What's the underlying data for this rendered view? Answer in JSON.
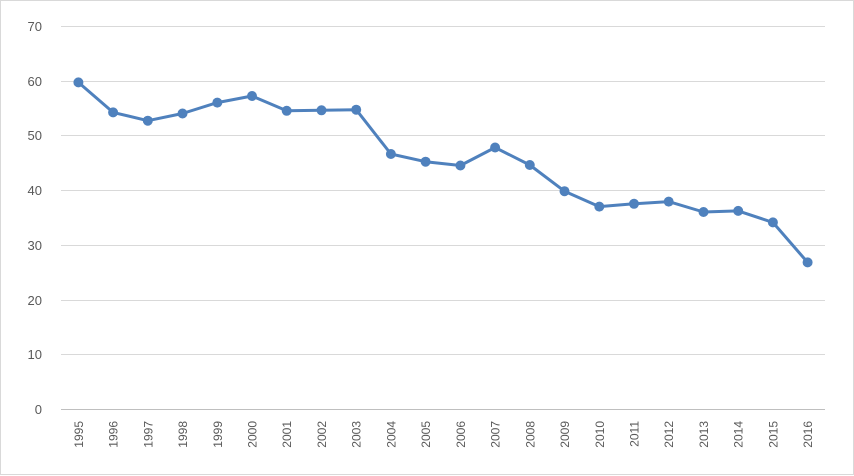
{
  "chart_data": {
    "type": "line",
    "title": "",
    "xlabel": "",
    "ylabel": "",
    "ylim": [
      0,
      70
    ],
    "yticks": [
      0,
      10,
      20,
      30,
      40,
      50,
      60,
      70
    ],
    "grid": "horizontal",
    "legend": "none",
    "categories": [
      "1995",
      "1996",
      "1997",
      "1998",
      "1999",
      "2000",
      "2001",
      "2002",
      "2003",
      "2004",
      "2005",
      "2006",
      "2007",
      "2008",
      "2009",
      "2010",
      "2011",
      "2012",
      "2013",
      "2014",
      "2015",
      "2016"
    ],
    "series": [
      {
        "color": "#4f81bd",
        "values": [
          59.7,
          54.2,
          52.7,
          54.0,
          56.0,
          57.2,
          54.5,
          54.6,
          54.7,
          46.6,
          45.2,
          44.5,
          47.8,
          44.6,
          39.8,
          37.0,
          37.5,
          37.9,
          36.0,
          36.2,
          34.1,
          26.8
        ]
      }
    ]
  }
}
